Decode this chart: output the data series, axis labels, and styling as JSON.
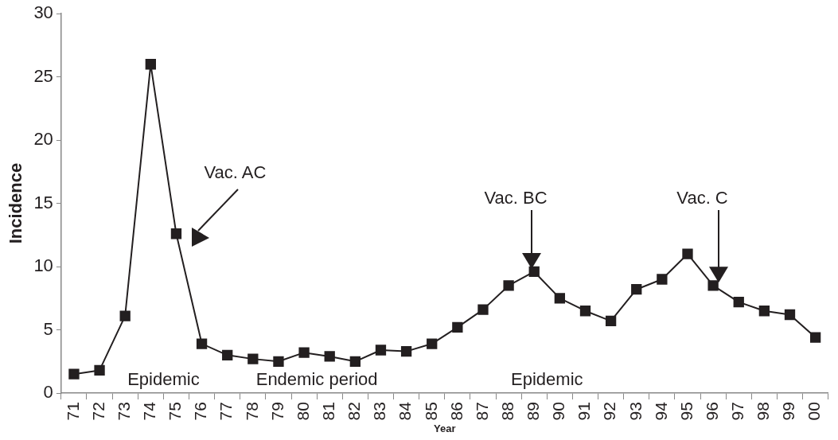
{
  "chart_data": {
    "type": "line",
    "xlabel": "Year",
    "ylabel": "Incidence",
    "categories": [
      "71",
      "72",
      "73",
      "74",
      "75",
      "76",
      "77",
      "78",
      "79",
      "80",
      "81",
      "82",
      "83",
      "84",
      "85",
      "86",
      "87",
      "88",
      "89",
      "90",
      "91",
      "92",
      "93",
      "94",
      "95",
      "96",
      "97",
      "98",
      "99",
      "00"
    ],
    "series": [
      {
        "color": "#231f20",
        "values": [
          1.5,
          1.8,
          6.1,
          26,
          12.6,
          3.9,
          3.0,
          2.7,
          2.5,
          3.2,
          2.9,
          2.5,
          3.4,
          3.3,
          3.9,
          5.2,
          6.6,
          8.5,
          9.6,
          7.5,
          6.5,
          5.7,
          8.2,
          9.0,
          11.0,
          8.5,
          7.2,
          6.5,
          6.2,
          4.4
        ]
      }
    ],
    "ylim": [
      0,
      30
    ],
    "yticks": [
      0,
      5,
      10,
      15,
      20,
      25,
      30
    ],
    "grid": false,
    "legend": false,
    "marker": "square",
    "line_style": "solid",
    "annotations": [
      "Vac. AC",
      "Vac. BC",
      "Vac. C",
      "Epidemic",
      "Endemic period",
      "Epidemic"
    ]
  }
}
